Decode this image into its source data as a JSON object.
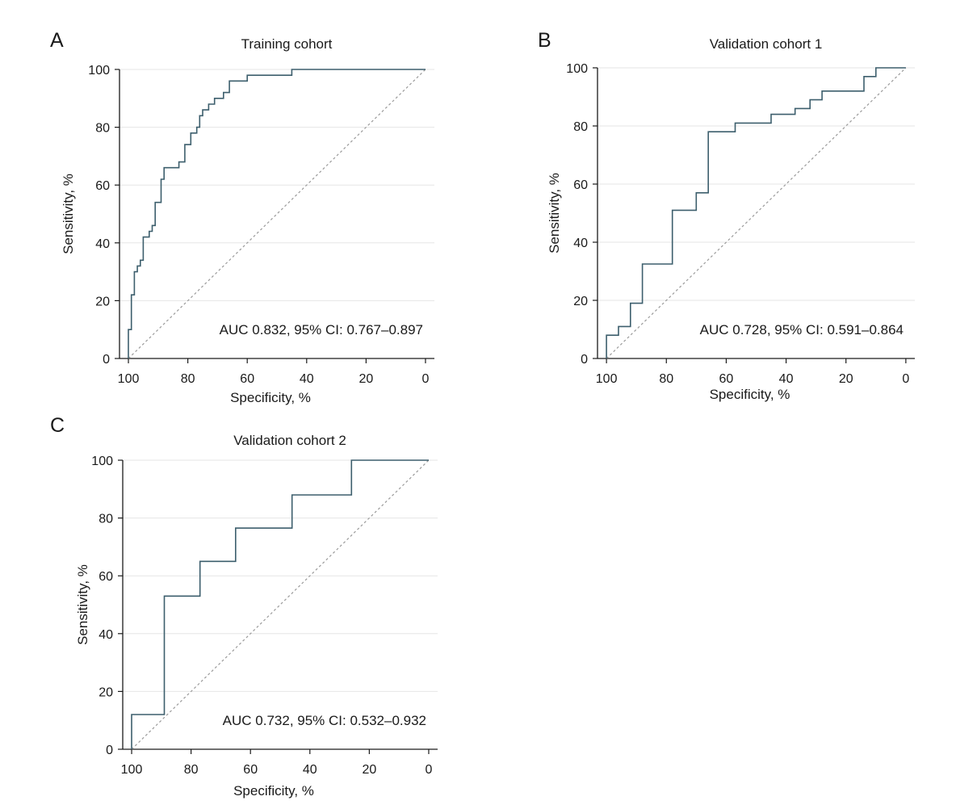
{
  "colors": {
    "roc": "#3d5f6d",
    "diagonal": "#9a9a9a",
    "grid": "#e6e6e6",
    "axis": "#1a1a1a"
  },
  "chart_data": [
    {
      "type": "line",
      "panel": "A",
      "title": "Training cohort",
      "xlabel": "Specificity, %",
      "ylabel": "Sensitivity, %",
      "xlim": [
        0,
        100
      ],
      "ylim": [
        0,
        100
      ],
      "x_reversed": true,
      "xticks": [
        100,
        80,
        60,
        40,
        20,
        0
      ],
      "yticks": [
        0,
        20,
        40,
        60,
        80,
        100
      ],
      "grid": true,
      "annotation": "AUC 0.832, 95% CI: 0.767–0.897",
      "series": [
        {
          "name": "ROC curve",
          "x": [
            100,
            100,
            99,
            99,
            98,
            98,
            97,
            97,
            96,
            96,
            95,
            95,
            93,
            93,
            92,
            92,
            91,
            91,
            89,
            89,
            88,
            88,
            83,
            83,
            81,
            81,
            79,
            79,
            77,
            77,
            76,
            76,
            75,
            75,
            73,
            73,
            71,
            71,
            68,
            68,
            66,
            66,
            60,
            60,
            45,
            45,
            20,
            20,
            0
          ],
          "y": [
            0,
            10,
            10,
            22,
            22,
            30,
            30,
            32,
            32,
            34,
            34,
            42,
            42,
            44,
            44,
            46,
            46,
            54,
            54,
            62,
            62,
            66,
            66,
            68,
            68,
            74,
            74,
            78,
            78,
            80,
            80,
            84,
            84,
            86,
            86,
            88,
            88,
            90,
            90,
            92,
            92,
            96,
            96,
            98,
            98,
            100,
            100,
            100,
            100
          ]
        },
        {
          "name": "Reference",
          "x": [
            100,
            0
          ],
          "y": [
            0,
            100
          ]
        }
      ]
    },
    {
      "type": "line",
      "panel": "B",
      "title": "Validation cohort 1",
      "xlabel": "Specificity, %",
      "ylabel": "Sensitivity, %",
      "xlim": [
        0,
        100
      ],
      "ylim": [
        0,
        100
      ],
      "x_reversed": true,
      "xticks": [
        100,
        80,
        60,
        40,
        20,
        0
      ],
      "yticks": [
        0,
        20,
        40,
        60,
        80,
        100
      ],
      "grid": true,
      "annotation": "AUC 0.728, 95% CI: 0.591–0.864",
      "series": [
        {
          "name": "ROC curve",
          "x": [
            100,
            100,
            96,
            96,
            92,
            92,
            88,
            88,
            78,
            78,
            70,
            70,
            66,
            66,
            57,
            57,
            45,
            45,
            37,
            37,
            32,
            32,
            28,
            28,
            14,
            14,
            10,
            10,
            0
          ],
          "y": [
            0,
            8,
            8,
            11,
            11,
            19,
            19,
            32.5,
            32.5,
            51,
            51,
            57,
            57,
            78,
            78,
            81,
            81,
            84,
            84,
            86,
            86,
            89,
            89,
            92,
            92,
            97,
            97,
            100,
            100
          ]
        },
        {
          "name": "Reference",
          "x": [
            100,
            0
          ],
          "y": [
            0,
            100
          ]
        }
      ]
    },
    {
      "type": "line",
      "panel": "C",
      "title": "Validation cohort 2",
      "xlabel": "Specificity, %",
      "ylabel": "Sensitivity, %",
      "xlim": [
        0,
        100
      ],
      "ylim": [
        0,
        100
      ],
      "x_reversed": true,
      "xticks": [
        100,
        80,
        60,
        40,
        20,
        0
      ],
      "yticks": [
        0,
        20,
        40,
        60,
        80,
        100
      ],
      "grid": true,
      "annotation": "AUC 0.732, 95% CI: 0.532–0.932",
      "series": [
        {
          "name": "ROC curve",
          "x": [
            100,
            100,
            89,
            89,
            77,
            77,
            65,
            65,
            46,
            46,
            26,
            26,
            0
          ],
          "y": [
            0,
            12,
            12,
            53,
            53,
            65,
            65,
            76.5,
            76.5,
            88,
            88,
            100,
            100
          ]
        },
        {
          "name": "Reference",
          "x": [
            100,
            0
          ],
          "y": [
            0,
            100
          ]
        }
      ]
    }
  ]
}
